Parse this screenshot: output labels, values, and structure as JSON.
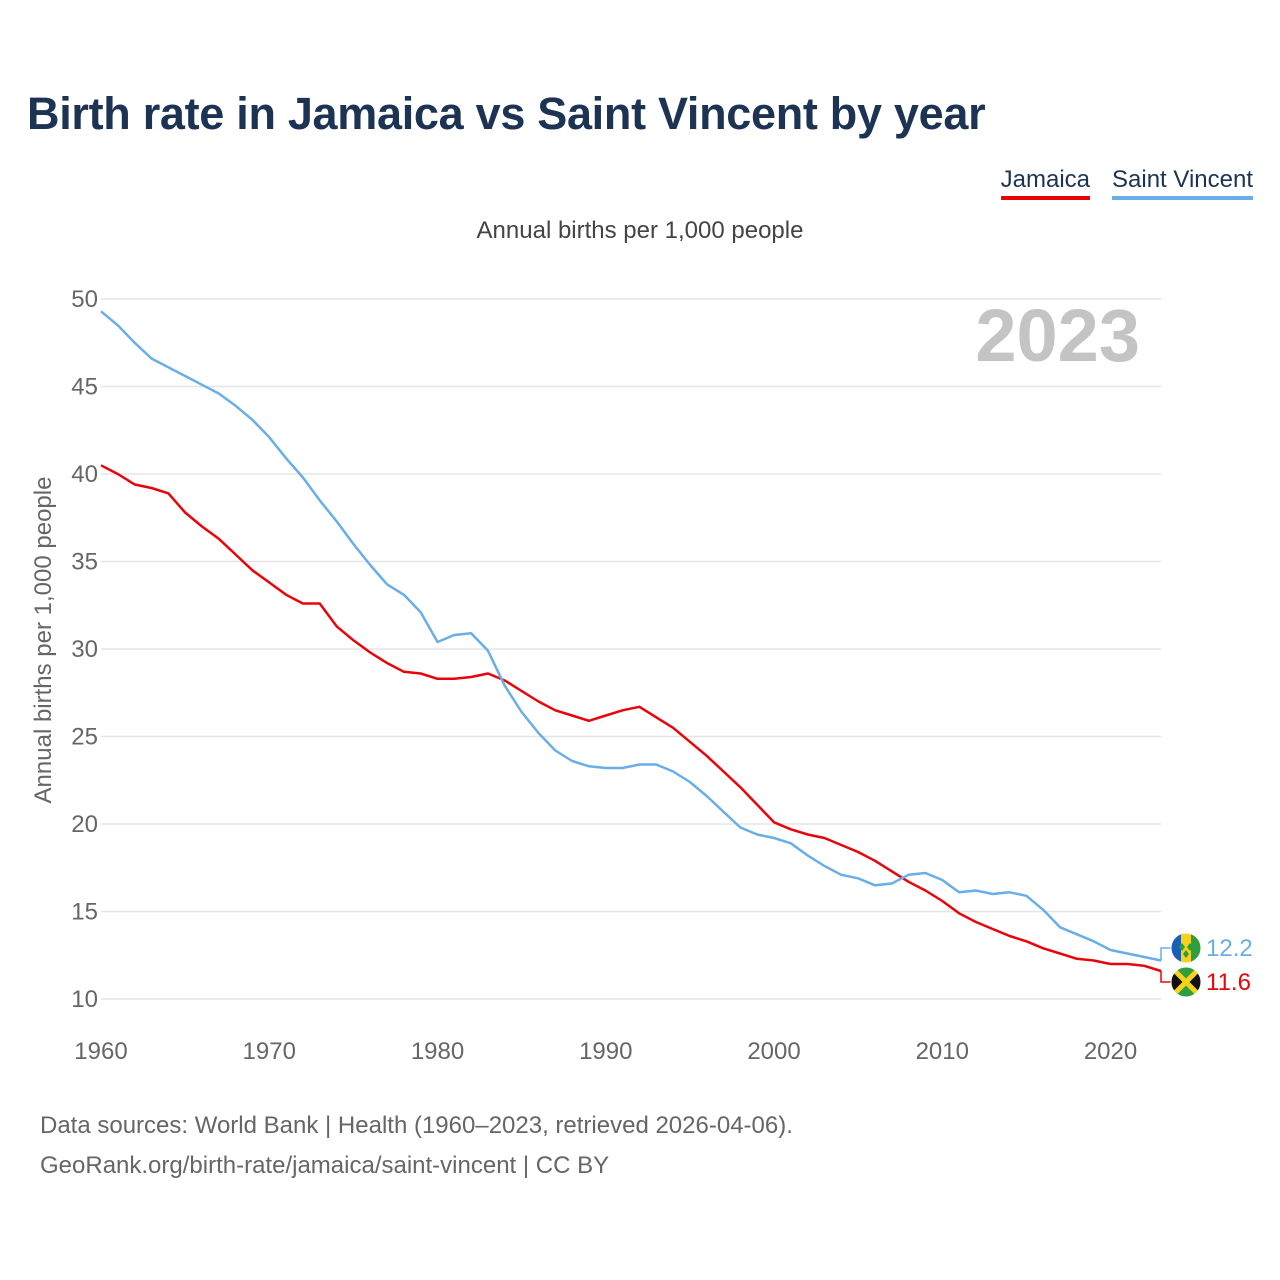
{
  "title": "Birth rate in Jamaica vs Saint Vincent by year",
  "subtitle": "Annual births per 1,000 people",
  "legend": [
    {
      "label": "Jamaica",
      "color": "#e8050a"
    },
    {
      "label": "Saint Vincent",
      "color": "#6aaee8"
    }
  ],
  "year_watermark": "2023",
  "footer": {
    "line1": "Data sources: World Bank | Health (1960–2023, retrieved 2026-04-06).",
    "line2": "GeoRank.org/birth-rate/jamaica/saint-vincent | CC BY"
  },
  "chart_data": {
    "type": "line",
    "title": "Birth rate in Jamaica vs Saint Vincent by year",
    "ylabel": "Annual births per 1,000 people",
    "xlabel": "",
    "xlim": [
      1960,
      2023
    ],
    "ylim": [
      10,
      50
    ],
    "x_ticks": [
      1960,
      1970,
      1980,
      1990,
      2000,
      2010,
      2020
    ],
    "y_ticks": [
      10,
      15,
      20,
      25,
      30,
      35,
      40,
      45,
      50
    ],
    "grid": true,
    "x": [
      1960,
      1961,
      1962,
      1963,
      1964,
      1965,
      1966,
      1967,
      1968,
      1969,
      1970,
      1971,
      1972,
      1973,
      1974,
      1975,
      1976,
      1977,
      1978,
      1979,
      1980,
      1981,
      1982,
      1983,
      1984,
      1985,
      1986,
      1987,
      1988,
      1989,
      1990,
      1991,
      1992,
      1993,
      1994,
      1995,
      1996,
      1997,
      1998,
      1999,
      2000,
      2001,
      2002,
      2003,
      2004,
      2005,
      2006,
      2007,
      2008,
      2009,
      2010,
      2011,
      2012,
      2013,
      2014,
      2015,
      2016,
      2017,
      2018,
      2019,
      2020,
      2021,
      2022,
      2023
    ],
    "series": [
      {
        "name": "Jamaica",
        "color": "#e8050a",
        "end_label": "11.6",
        "values": [
          40.5,
          40.0,
          39.4,
          39.2,
          38.9,
          37.8,
          37.0,
          36.3,
          35.4,
          34.5,
          33.8,
          33.1,
          32.6,
          32.6,
          31.3,
          30.5,
          29.8,
          29.2,
          28.7,
          28.6,
          28.3,
          28.3,
          28.4,
          28.6,
          28.2,
          27.6,
          27.0,
          26.5,
          26.2,
          25.9,
          26.2,
          26.5,
          26.7,
          26.1,
          25.5,
          24.7,
          23.9,
          23.0,
          22.1,
          21.1,
          20.1,
          19.7,
          19.4,
          19.2,
          18.8,
          18.4,
          17.9,
          17.3,
          16.7,
          16.2,
          15.6,
          14.9,
          14.4,
          14.0,
          13.6,
          13.3,
          12.9,
          12.6,
          12.3,
          12.2,
          12.0,
          12.0,
          11.9,
          11.6
        ]
      },
      {
        "name": "Saint Vincent",
        "color": "#6aaee8",
        "end_label": "12.2",
        "values": [
          49.3,
          48.5,
          47.5,
          46.6,
          46.1,
          45.6,
          45.1,
          44.6,
          43.9,
          43.1,
          42.1,
          40.9,
          39.8,
          38.5,
          37.3,
          36.0,
          34.8,
          33.7,
          33.1,
          32.1,
          30.4,
          30.8,
          30.9,
          29.9,
          27.9,
          26.4,
          25.2,
          24.2,
          23.6,
          23.3,
          23.2,
          23.2,
          23.4,
          23.4,
          23.0,
          22.4,
          21.6,
          20.7,
          19.8,
          19.4,
          19.2,
          18.9,
          18.2,
          17.6,
          17.1,
          16.9,
          16.5,
          16.6,
          17.1,
          17.2,
          16.8,
          16.1,
          16.2,
          16.0,
          16.1,
          15.9,
          15.1,
          14.1,
          13.7,
          13.3,
          12.8,
          12.6,
          12.4,
          12.2
        ]
      }
    ]
  }
}
